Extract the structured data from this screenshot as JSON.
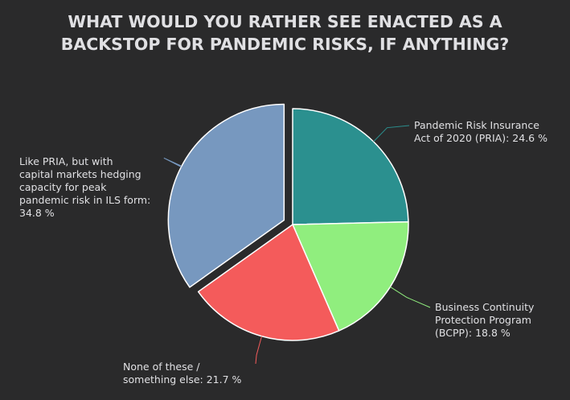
{
  "chart_data": {
    "type": "pie",
    "title_lines": [
      "WHAT WOULD YOU RATHER SEE ENACTED AS A",
      "BACKSTOP FOR PANDEMIC RISKS, IF ANYTHING?"
    ],
    "slices": [
      {
        "label_lines": [
          "Pandemic Risk Insurance",
          "Act of 2020 (PRIA): 24.6 %"
        ],
        "value": 24.6,
        "color": "#2b908f"
      },
      {
        "label_lines": [
          "Business Continuity",
          "Protection Program",
          "(BCPP): 18.8 %"
        ],
        "value": 18.8,
        "color": "#90ee7e"
      },
      {
        "label_lines": [
          "None of these /",
          "something else: 21.7 %"
        ],
        "value": 21.7,
        "color": "#f45b5b"
      },
      {
        "label_lines": [
          "Like PRIA, but with",
          "capital markets hedging",
          "capacity for peak",
          "pandemic risk in ILS form:",
          "34.8 %"
        ],
        "value": 34.8,
        "color": "#7798bf",
        "sliced": true
      }
    ]
  }
}
